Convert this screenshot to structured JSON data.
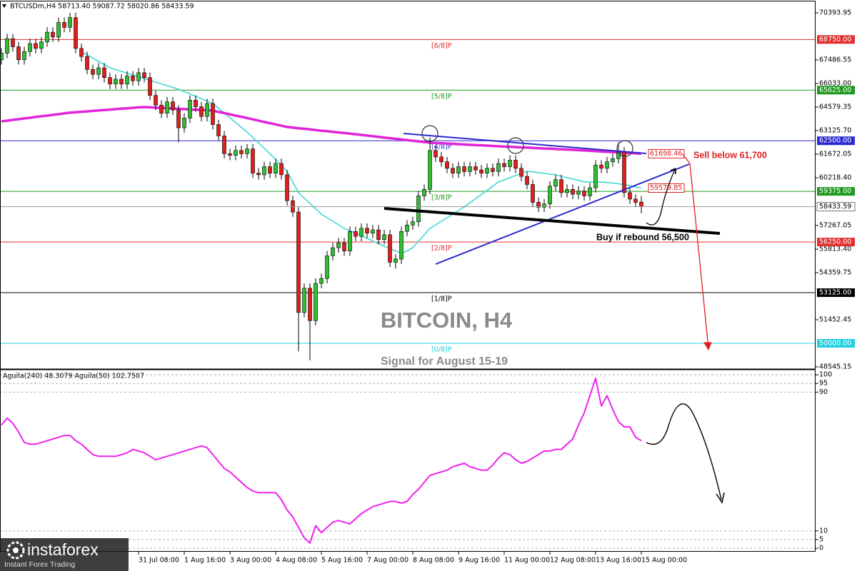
{
  "header": "BTCUSDm,H4  58713.40 59087.72 58020.86 58433.59",
  "watermark": {
    "title": "BITCOIN, H4",
    "subtitle": "Signal for August 15-19"
  },
  "logo": {
    "name": "instaforex",
    "tagline": "Instant Forex Trading"
  },
  "chart_data": [
    {
      "type": "candlestick",
      "categories": [
        null,
        null,
        null,
        null,
        null,
        null,
        null,
        null,
        null,
        null,
        null,
        null,
        null,
        null,
        null,
        null,
        null,
        null,
        null,
        null,
        null,
        null,
        null,
        null,
        "31 Jul 08:00",
        null,
        null,
        null,
        null,
        null,
        null,
        null,
        "1 Aug 16:00",
        null,
        null,
        null,
        null,
        null,
        null,
        null,
        "3 Aug 00:00",
        null,
        null,
        null,
        null,
        null,
        null,
        null,
        "4 Aug 08:00",
        null,
        null,
        null,
        null,
        null,
        null,
        null,
        "5 Aug 16:00",
        null,
        null,
        null,
        null,
        null,
        null,
        null,
        "7 Aug 00:00",
        null,
        null,
        null,
        null,
        null,
        null,
        null,
        "8 Aug 08:00",
        null,
        null,
        null,
        null,
        null,
        null,
        null,
        "9 Aug 16:00",
        null,
        null,
        null,
        null,
        null,
        null,
        null,
        "11 Aug 00:00",
        null,
        null,
        null,
        null,
        null,
        null,
        null,
        "12 Aug 08:00",
        null,
        null,
        null,
        null,
        null,
        null,
        null,
        "13 Aug 16:00",
        null,
        null,
        null,
        null,
        null,
        null,
        null,
        "15 Aug 00:00"
      ],
      "open": [
        67500,
        67900,
        68800,
        68300,
        67500,
        68000,
        68500,
        68200,
        68600,
        69200,
        68900,
        69800,
        69500,
        70100,
        68200,
        67700,
        66900,
        66600,
        67000,
        66400,
        66000,
        66300,
        66000,
        66500,
        66200,
        66700,
        66400,
        65300,
        64700,
        64200,
        64900,
        64400,
        63300,
        63900,
        65000,
        64600,
        64000,
        64800,
        63500,
        62800,
        61700,
        61600,
        61900,
        61700,
        62000,
        60500,
        60400,
        60900,
        60500,
        61100,
        60400,
        58800,
        58100,
        51900,
        53400,
        51400,
        53700,
        54000,
        55400,
        55900,
        56200,
        55700,
        56900,
        56600,
        57100,
        56800,
        57000,
        56400,
        56700,
        55000,
        55200,
        56900,
        57300,
        57500,
        59100,
        59500,
        61900,
        61500,
        61200,
        60800,
        60500,
        60900,
        60600,
        60900,
        60700,
        60500,
        60800,
        60600,
        61100,
        60900,
        61300,
        60800,
        60300,
        59800,
        58700,
        58400,
        58600,
        59700,
        60100,
        59300,
        59500,
        59200,
        59400,
        59100,
        59600,
        61000,
        60800,
        61200,
        61400,
        61800,
        59300,
        58900,
        58713.4
      ],
      "high": [
        68200,
        69100,
        69100,
        68600,
        68300,
        68800,
        68800,
        68900,
        69500,
        69500,
        70100,
        70100,
        70400,
        70400,
        68500,
        68000,
        67200,
        67300,
        67300,
        66700,
        66600,
        66600,
        66800,
        66800,
        67000,
        67000,
        66700,
        65600,
        65000,
        65200,
        65200,
        64700,
        64200,
        65300,
        65300,
        64900,
        65100,
        65100,
        63800,
        63100,
        62000,
        62200,
        62200,
        62300,
        62300,
        60800,
        61200,
        61200,
        61400,
        61400,
        60700,
        59100,
        58400,
        53700,
        53700,
        54000,
        54300,
        55700,
        56200,
        56500,
        56500,
        57200,
        57200,
        57400,
        57400,
        57300,
        57300,
        57000,
        57000,
        55500,
        57200,
        57600,
        57800,
        59400,
        59800,
        62700,
        62200,
        61800,
        61500,
        61100,
        61200,
        61200,
        61200,
        61200,
        61000,
        61100,
        61100,
        61400,
        61400,
        61600,
        61600,
        61100,
        60600,
        60100,
        59000,
        58900,
        60000,
        60400,
        60400,
        59800,
        59800,
        59700,
        59700,
        59900,
        61300,
        61300,
        61500,
        61700,
        62400,
        62100,
        59600,
        59200,
        59087.72
      ],
      "low": [
        67200,
        67600,
        68000,
        67200,
        67200,
        67700,
        67900,
        67900,
        68300,
        68600,
        68600,
        69200,
        69200,
        67900,
        67400,
        66600,
        66300,
        66300,
        66100,
        65700,
        65700,
        65700,
        65700,
        65900,
        65900,
        66100,
        65000,
        64400,
        63900,
        63900,
        64100,
        62400,
        63000,
        63600,
        64300,
        63700,
        63700,
        63200,
        62500,
        61400,
        61300,
        61300,
        61400,
        61400,
        60200,
        60100,
        60100,
        60200,
        60200,
        60100,
        58500,
        57800,
        49500,
        51600,
        48950,
        51100,
        53400,
        53700,
        55100,
        55600,
        55400,
        55400,
        56300,
        56300,
        56500,
        56500,
        56100,
        56100,
        54700,
        54600,
        54900,
        56600,
        57000,
        57200,
        58800,
        59200,
        61200,
        60900,
        60500,
        60200,
        60200,
        60300,
        60300,
        60400,
        60200,
        60200,
        60300,
        60300,
        60600,
        60600,
        60500,
        60000,
        59500,
        58400,
        58100,
        58100,
        58300,
        59400,
        59000,
        59000,
        58900,
        58900,
        58800,
        58800,
        59300,
        60500,
        60500,
        60900,
        61100,
        59000,
        58600,
        58400,
        58020.86
      ],
      "close": [
        67900,
        68800,
        68300,
        67500,
        68000,
        68500,
        68200,
        68600,
        69200,
        68900,
        69800,
        69500,
        70100,
        68200,
        67700,
        66900,
        66600,
        67000,
        66400,
        66000,
        66300,
        66000,
        66500,
        66200,
        66700,
        66400,
        65300,
        64700,
        64200,
        64900,
        64400,
        63300,
        63900,
        65000,
        64600,
        64000,
        64800,
        63500,
        62800,
        61700,
        61600,
        61900,
        61700,
        62000,
        60500,
        60400,
        60900,
        60500,
        61100,
        60400,
        58800,
        58100,
        51900,
        53400,
        51400,
        53700,
        54000,
        55400,
        55900,
        56200,
        55700,
        56900,
        56600,
        57100,
        56800,
        57000,
        56400,
        56700,
        55000,
        55200,
        56900,
        57300,
        57500,
        59100,
        59500,
        61900,
        61500,
        61200,
        60800,
        60500,
        60900,
        60600,
        60900,
        60700,
        60500,
        60800,
        60600,
        61100,
        60900,
        61300,
        60800,
        60300,
        59800,
        58700,
        58400,
        58600,
        59700,
        60100,
        59300,
        59500,
        59200,
        59400,
        59100,
        59600,
        61000,
        60800,
        61200,
        61400,
        61800,
        59300,
        58900,
        58700,
        58433.59
      ],
      "up_color": "#2fbf2f",
      "down_color": "#e01e1e",
      "lines": [
        {
          "color": "#3fd8d4",
          "values": [
            null,
            null,
            null,
            null,
            null,
            null,
            null,
            null,
            null,
            null,
            null,
            null,
            null,
            null,
            68000,
            67800,
            67600,
            67400,
            67200,
            67000,
            66890,
            66780,
            66670,
            66560,
            66450,
            66340,
            66230,
            66120,
            66010,
            65900,
            65790,
            65680,
            65530,
            65390,
            65240,
            65090,
            64950,
            64800,
            64510,
            64210,
            63920,
            63630,
            63330,
            63040,
            62700,
            62370,
            62030,
            61700,
            61340,
            60980,
            60620,
            59950,
            59290,
            58960,
            58630,
            58300,
            57970,
            57750,
            57530,
            57310,
            57090,
            56940,
            56800,
            56650,
            56480,
            56320,
            56150,
            55990,
            55840,
            55700,
            55550,
            55700,
            55900,
            56300,
            56700,
            57090,
            57310,
            57530,
            57750,
            57970,
            58190,
            58410,
            58670,
            58930,
            59180,
            59440,
            59700,
            59960,
            60090,
            60220,
            60360,
            60490,
            60620,
            60580,
            60530,
            60490,
            60440,
            60400,
            60310,
            60220,
            60140,
            60050,
            59960,
            59960,
            59950,
            59950,
            59920,
            59890,
            59840,
            59790,
            59740,
            59640,
            59579.85
          ]
        },
        {
          "color": "#e024d8",
          "values": [
            63700,
            63740,
            63790,
            63830,
            63880,
            63920,
            63970,
            64010,
            64050,
            64100,
            64140,
            64190,
            64230,
            64260,
            64290,
            64310,
            64340,
            64370,
            64400,
            64420,
            64450,
            64480,
            64500,
            64530,
            64560,
            64580,
            64560,
            64540,
            64530,
            64510,
            64490,
            64470,
            64450,
            64430,
            64420,
            64400,
            64380,
            64360,
            64280,
            64210,
            64130,
            64050,
            63980,
            63900,
            63820,
            63740,
            63660,
            63590,
            63510,
            63430,
            63350,
            63310,
            63270,
            63240,
            63200,
            63160,
            63120,
            63090,
            63050,
            63010,
            62980,
            62940,
            62900,
            62860,
            62820,
            62780,
            62740,
            62700,
            62660,
            62620,
            62580,
            62540,
            62500,
            62460,
            62420,
            62380,
            62360,
            62340,
            62330,
            62310,
            62290,
            62270,
            62250,
            62230,
            62220,
            62200,
            62180,
            62160,
            62140,
            62130,
            62110,
            62090,
            62080,
            62060,
            62040,
            62020,
            62010,
            61990,
            61970,
            61960,
            61940,
            61920,
            61900,
            61880,
            61860,
            61840,
            61820,
            61800,
            61780,
            61760,
            61740,
            61720,
            61698.46
          ]
        }
      ],
      "levels": [
        {
          "name": "[6/8]P",
          "value": 68750,
          "label": "68750.00",
          "color": "#e03030"
        },
        {
          "name": "[5/8]P",
          "value": 65625,
          "label": "65625.00",
          "color": "#1f9a1f"
        },
        {
          "name": "[4/8]P",
          "value": 62500,
          "label": "62500.00",
          "color": "#2a2ad0"
        },
        {
          "name": "[3/8]P",
          "value": 59375,
          "label": "59375.00",
          "color": "#1f9a1f"
        },
        {
          "name": "[2/8]P",
          "value": 56250,
          "label": "56250.00",
          "color": "#e03030"
        },
        {
          "name": "[1/8]P",
          "value": 53125,
          "label": "53125.00",
          "color": "#000000"
        },
        {
          "name": "[0/8]P",
          "value": 50000,
          "label": "50000.00",
          "color": "#22d0e0"
        }
      ],
      "annotations": [
        "Sell below 61,700",
        "Buy if rebound 56,500"
      ],
      "ylim": [
        48457,
        71099
      ],
      "yticks": [
        70393.95,
        67486.55,
        {
          "value": 66033,
          "label": "66033.00"
        },
        64579.35,
        {
          "value": 63125.7,
          "label": "63125.70"
        },
        61672.05,
        {
          "value": 60218.4,
          "label": "60218.40"
        },
        57267.05,
        {
          "value": 55813.4,
          "label": "55813.40"
        },
        54359.75,
        51452.45,
        48545.15
      ],
      "grid": false
    },
    {
      "type": "line",
      "title": "Aguila(240) 48.3079   Aguila(50) 102.7507",
      "series": [
        {
          "color": "#ee22ee",
          "values": [
            71,
            75,
            72,
            67,
            61,
            60,
            60,
            61,
            62,
            63,
            64,
            65,
            65,
            62,
            60,
            57,
            54,
            53,
            53,
            53,
            53,
            54,
            55,
            57,
            56,
            55,
            53,
            51,
            52,
            53,
            54,
            55,
            56,
            57,
            58,
            59,
            58,
            54,
            50,
            46,
            44,
            41,
            38,
            35,
            33,
            32,
            32,
            32,
            32,
            28,
            22,
            18,
            12,
            6,
            3,
            13,
            9,
            12,
            15,
            16,
            15,
            14,
            17,
            20,
            22,
            24,
            25,
            26,
            27,
            27,
            26,
            27,
            31,
            34,
            38,
            42,
            43,
            44,
            45,
            47,
            48,
            49,
            47,
            46,
            45,
            45,
            48,
            52,
            55,
            54,
            51,
            49,
            50,
            52,
            54,
            56,
            56,
            57,
            57,
            60,
            63,
            71,
            78,
            88,
            98,
            82,
            88,
            80,
            73,
            70,
            70,
            64,
            62
          ]
        }
      ],
      "ylim": [
        -1.6,
        102.5
      ],
      "yticks": [
        100,
        95,
        90,
        10,
        5,
        0
      ],
      "grid": true
    }
  ]
}
